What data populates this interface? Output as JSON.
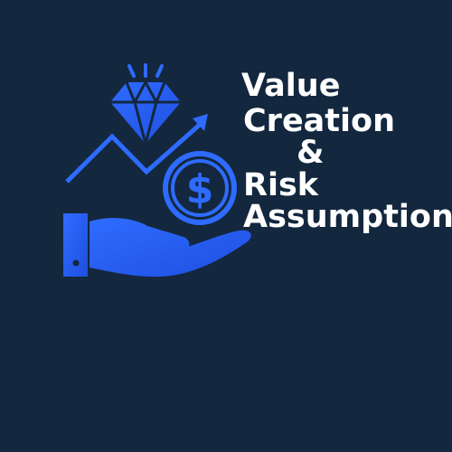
{
  "headline": {
    "line1": "Value",
    "line2": "Creation",
    "line3": "&",
    "line4": "Risk",
    "line5": "Assumption"
  },
  "colors": {
    "background": "#13273e",
    "accent": "#2e6bff",
    "text": "#ffffff"
  },
  "icons": [
    "diamond-icon",
    "growth-arrow-icon",
    "dollar-coin-icon",
    "open-hand-icon"
  ]
}
